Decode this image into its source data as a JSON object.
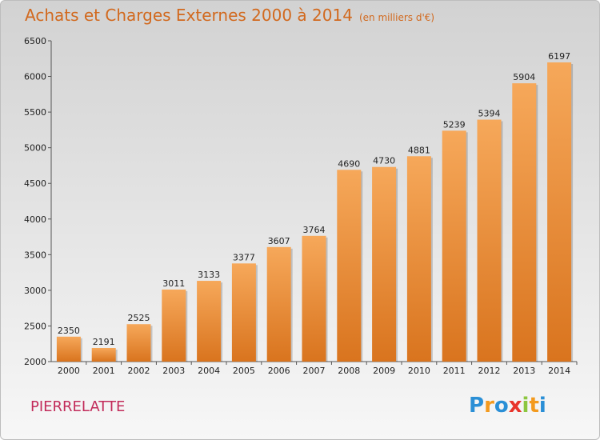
{
  "header": {
    "title": "Achats et Charges Externes 2000 à 2014",
    "unit": "(en milliers d'€)"
  },
  "footer": {
    "city": "PIERRELATTE",
    "logo_letters": [
      "P",
      "r",
      "o",
      "x",
      "i",
      "t",
      "i"
    ],
    "logo_colors": [
      "#2a8fd6",
      "#f39a1e",
      "#2a8fd6",
      "#e8332a",
      "#8cc63f",
      "#f39a1e",
      "#2a8fd6"
    ]
  },
  "colors": {
    "bar_top": "#f6a85a",
    "bar_bottom": "#d9741e",
    "axis": "#555555",
    "grid": "#ffffff"
  },
  "chart_data": {
    "type": "bar",
    "categories": [
      "2000",
      "2001",
      "2002",
      "2003",
      "2004",
      "2005",
      "2006",
      "2007",
      "2008",
      "2009",
      "2010",
      "2011",
      "2012",
      "2013",
      "2014"
    ],
    "values": [
      2350,
      2191,
      2525,
      3011,
      3133,
      3377,
      3607,
      3764,
      4690,
      4730,
      4881,
      5239,
      5394,
      5904,
      6197
    ],
    "title": "Achats et Charges Externes 2000 à 2014",
    "subtitle": "(en milliers d'€)",
    "ylim": [
      2000,
      6500
    ],
    "yticks": [
      2000,
      2500,
      3000,
      3500,
      4000,
      4500,
      5000,
      5500,
      6000,
      6500
    ],
    "grid": false
  }
}
